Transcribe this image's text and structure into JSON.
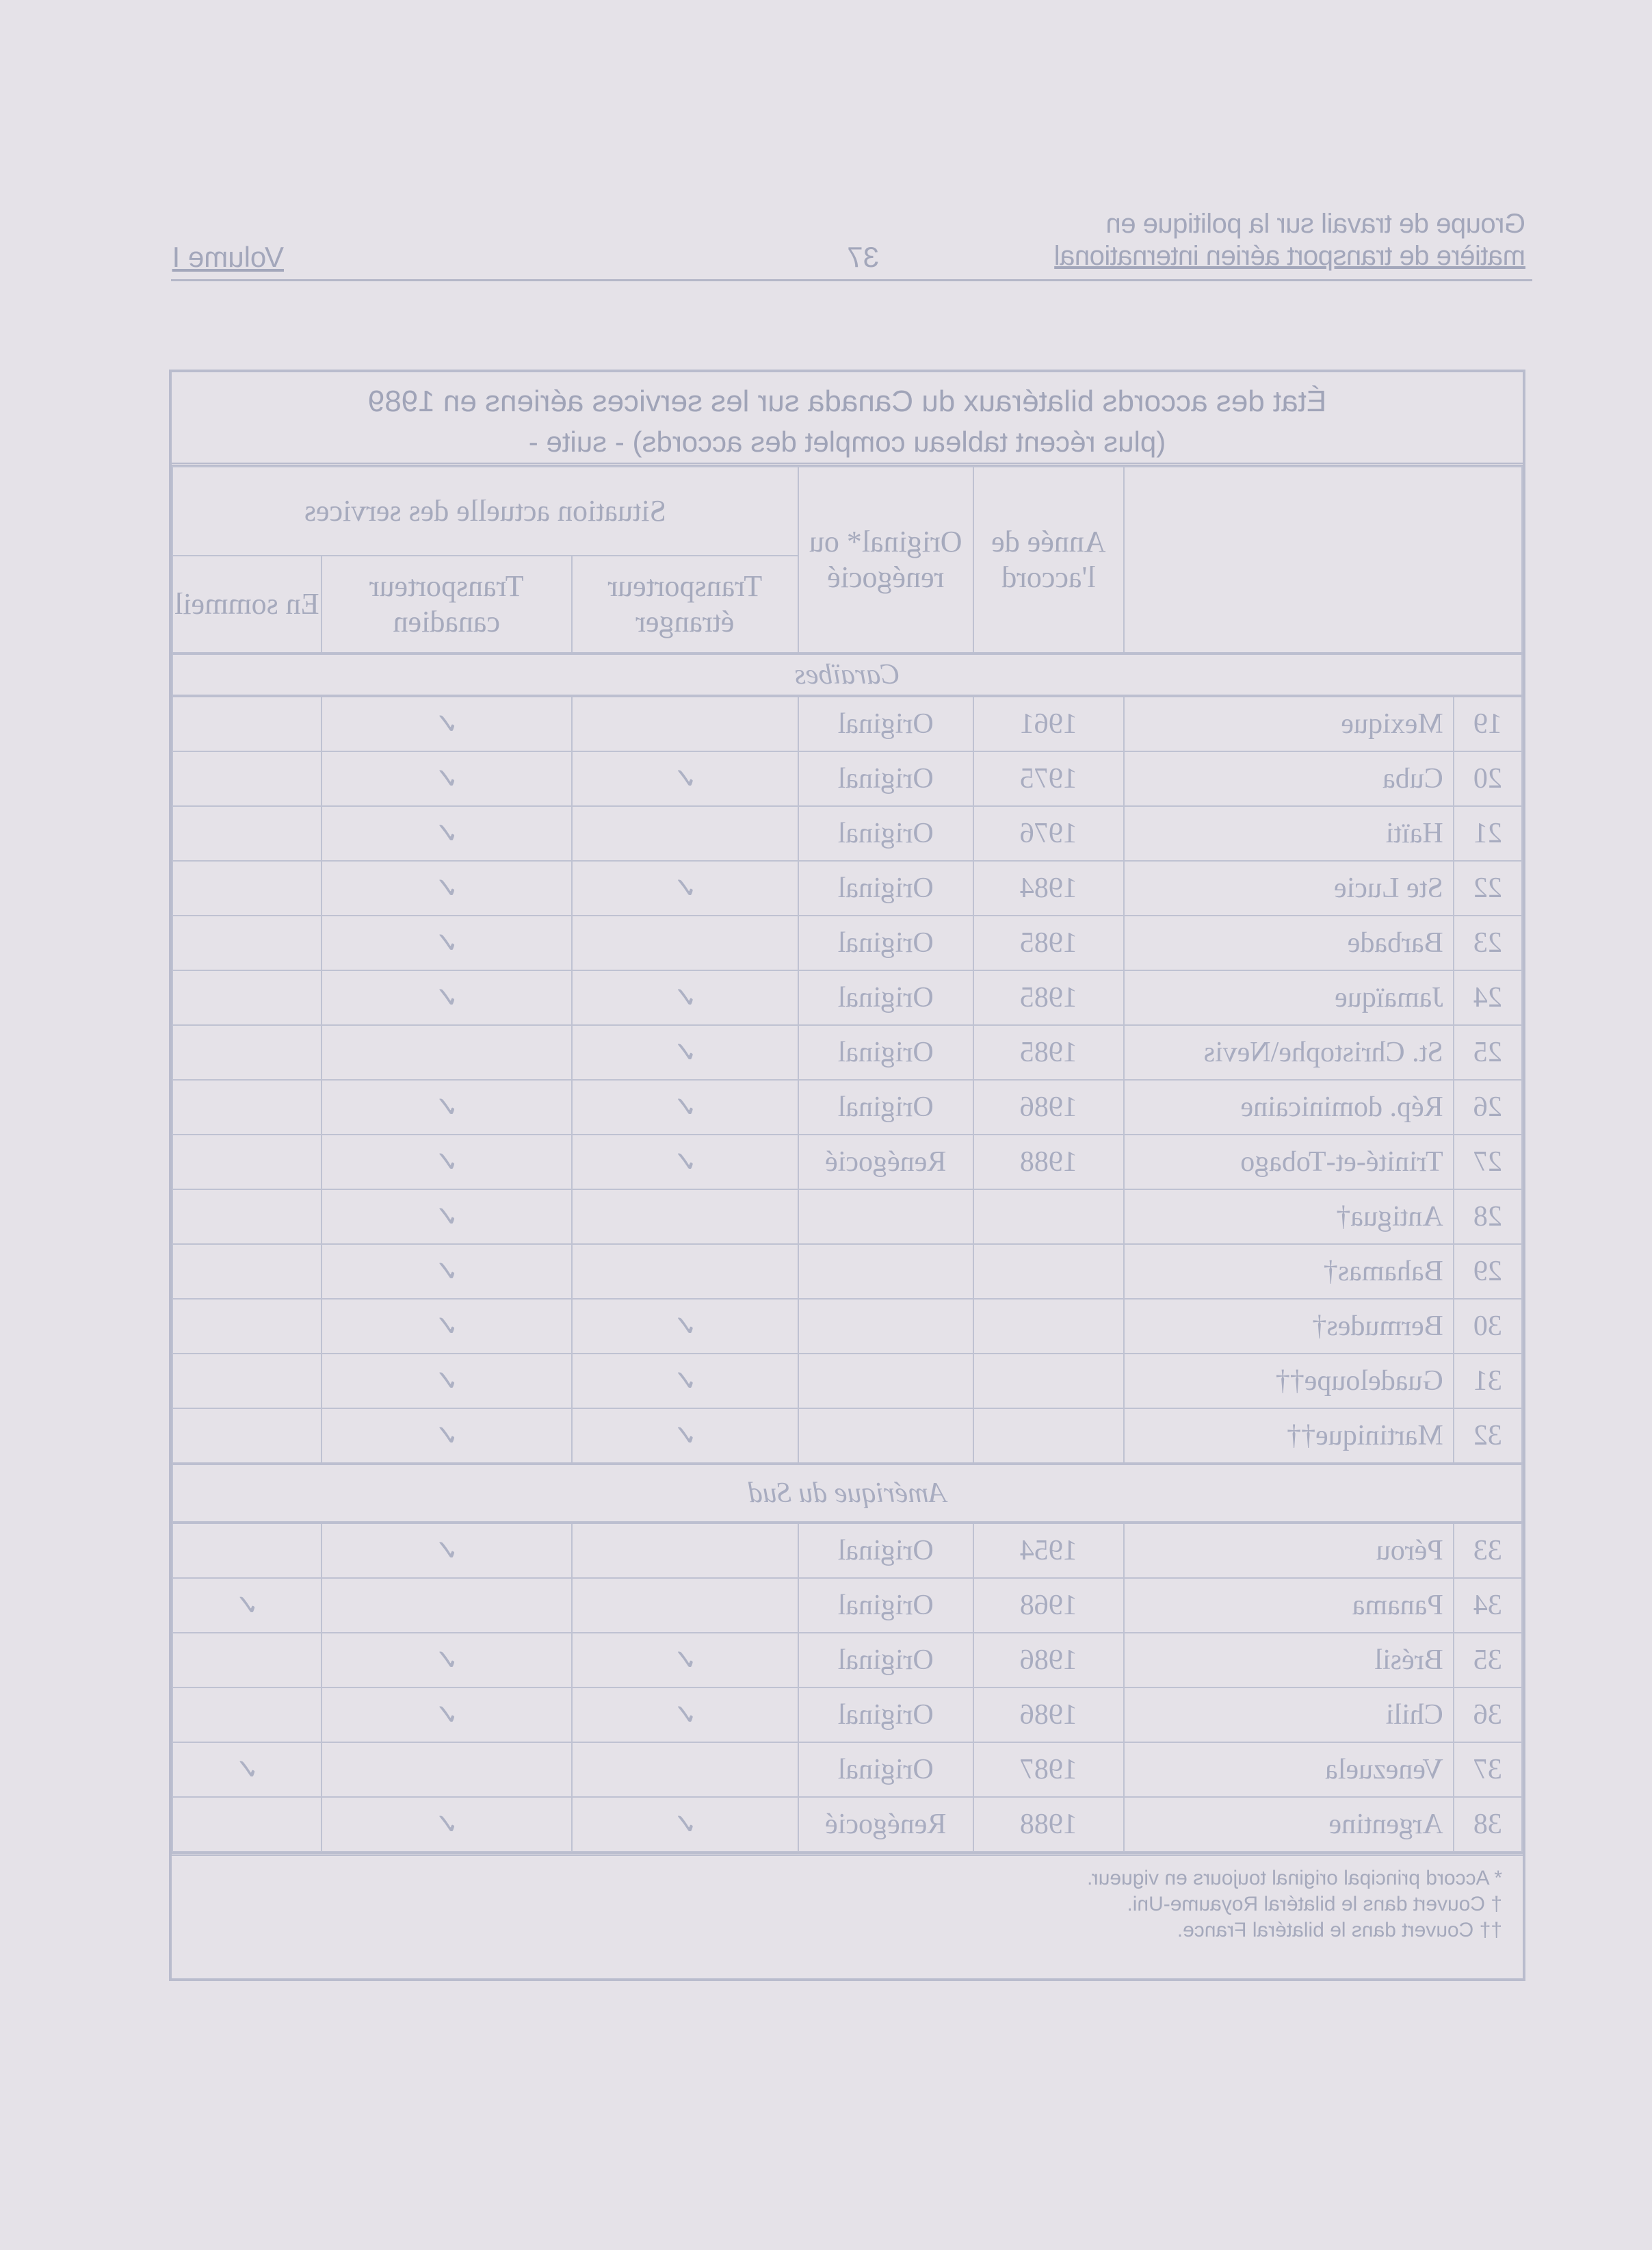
{
  "header": {
    "line1": "Groupe de travail sur la politique en",
    "line2": "matière de transport aérien international",
    "page_number": "37",
    "volume": "Volume I"
  },
  "table": {
    "title": "État des accords bilatéraux du Canada sur les services aériens en 1989",
    "subtitle": "(plus récent tableau complet des accords) - suite -",
    "columns": {
      "year": "Année de l'accord",
      "original": "Original* ou renégocié",
      "situation": "Situation actuelle des services",
      "foreign": "Transporteur étranger",
      "canadian": "Transporteur canadien",
      "dormant": "En sommeil"
    },
    "check_mark": "✓",
    "sections": [
      {
        "name": "Caraïbes",
        "rows": [
          {
            "num": "19",
            "country": "Mexique",
            "year": "1961",
            "type": "Original",
            "foreign": false,
            "canadian": true,
            "dormant": false
          },
          {
            "num": "20",
            "country": "Cuba",
            "year": "1975",
            "type": "Original",
            "foreign": true,
            "canadian": true,
            "dormant": false
          },
          {
            "num": "21",
            "country": "Haïti",
            "year": "1976",
            "type": "Original",
            "foreign": false,
            "canadian": true,
            "dormant": false
          },
          {
            "num": "22",
            "country": "Ste Lucie",
            "year": "1984",
            "type": "Original",
            "foreign": true,
            "canadian": true,
            "dormant": false
          },
          {
            "num": "23",
            "country": "Barbade",
            "year": "1985",
            "type": "Original",
            "foreign": false,
            "canadian": true,
            "dormant": false
          },
          {
            "num": "24",
            "country": "Jamaïque",
            "year": "1985",
            "type": "Original",
            "foreign": true,
            "canadian": true,
            "dormant": false
          },
          {
            "num": "25",
            "country": "St. Christophe\\Nevis",
            "year": "1985",
            "type": "Original",
            "foreign": true,
            "canadian": false,
            "dormant": false
          },
          {
            "num": "26",
            "country": "Rép. dominicaine",
            "year": "1986",
            "type": "Original",
            "foreign": true,
            "canadian": true,
            "dormant": false
          },
          {
            "num": "27",
            "country": "Trinité-et-Tobago",
            "year": "1988",
            "type": "Renégocié",
            "foreign": true,
            "canadian": true,
            "dormant": false
          },
          {
            "num": "28",
            "country": "Antigua†",
            "year": "",
            "type": "",
            "foreign": false,
            "canadian": true,
            "dormant": false
          },
          {
            "num": "29",
            "country": "Bahamas†",
            "year": "",
            "type": "",
            "foreign": false,
            "canadian": true,
            "dormant": false
          },
          {
            "num": "30",
            "country": "Bermudes†",
            "year": "",
            "type": "",
            "foreign": true,
            "canadian": true,
            "dormant": false
          },
          {
            "num": "31",
            "country": "Guadeloupe††",
            "year": "",
            "type": "",
            "foreign": true,
            "canadian": true,
            "dormant": false
          },
          {
            "num": "32",
            "country": "Martinique††",
            "year": "",
            "type": "",
            "foreign": true,
            "canadian": true,
            "dormant": false
          }
        ]
      },
      {
        "name": "Amérique du Sud",
        "rows": [
          {
            "num": "33",
            "country": "Pérou",
            "year": "1954",
            "type": "Original",
            "foreign": false,
            "canadian": true,
            "dormant": false
          },
          {
            "num": "34",
            "country": "Panama",
            "year": "1968",
            "type": "Original",
            "foreign": false,
            "canadian": false,
            "dormant": true
          },
          {
            "num": "35",
            "country": "Brésil",
            "year": "1986",
            "type": "Original",
            "foreign": true,
            "canadian": true,
            "dormant": false
          },
          {
            "num": "36",
            "country": "Chili",
            "year": "1986",
            "type": "Original",
            "foreign": true,
            "canadian": true,
            "dormant": false
          },
          {
            "num": "37",
            "country": "Venezuela",
            "year": "1987",
            "type": "Original",
            "foreign": false,
            "canadian": false,
            "dormant": true
          },
          {
            "num": "38",
            "country": "Argentine",
            "year": "1988",
            "type": "Renégocié",
            "foreign": true,
            "canadian": true,
            "dormant": false
          }
        ]
      }
    ],
    "footnotes": [
      "* Accord principal original toujours en vigueur.",
      "† Couvert dans le bilatéral Royaume-Uni.",
      "†† Couvert dans le bilatéral France."
    ]
  }
}
